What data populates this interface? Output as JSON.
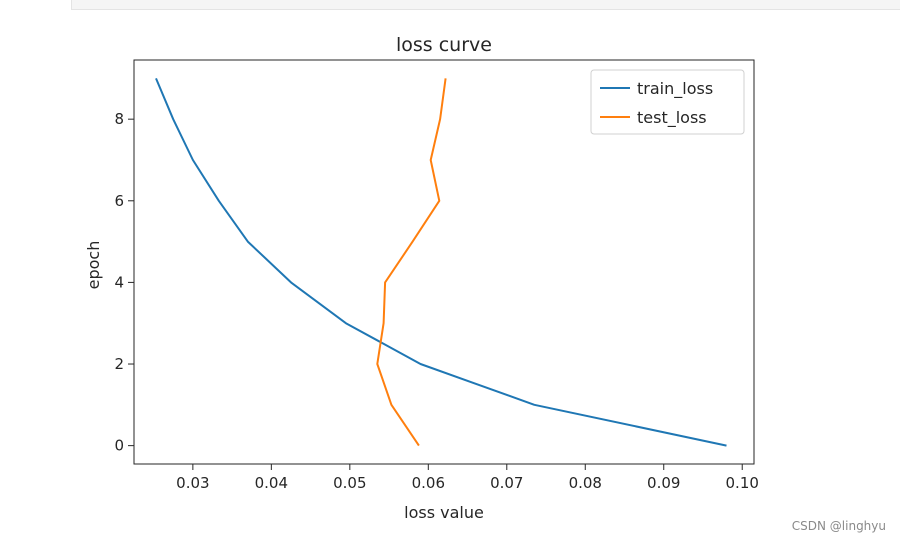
{
  "watermark": "CSDN @linghyu",
  "chart_data": {
    "type": "line",
    "title": "loss curve",
    "xlabel": "loss value",
    "ylabel": "epoch",
    "xlim": [
      0.0225,
      0.1015
    ],
    "ylim": [
      -0.45,
      9.45
    ],
    "xticks": [
      0.03,
      0.04,
      0.05,
      0.06,
      0.07,
      0.08,
      0.09,
      0.1
    ],
    "xtick_labels": [
      "0.03",
      "0.04",
      "0.05",
      "0.06",
      "0.07",
      "0.08",
      "0.09",
      "0.10"
    ],
    "yticks": [
      0,
      2,
      4,
      6,
      8
    ],
    "ytick_labels": [
      "0",
      "2",
      "4",
      "6",
      "8"
    ],
    "grid": false,
    "legend_position": "top-right",
    "series": [
      {
        "name": "train_loss",
        "color": "#1f77b4",
        "points": [
          [
            0.098,
            0
          ],
          [
            0.0735,
            1
          ],
          [
            0.059,
            2
          ],
          [
            0.0495,
            3
          ],
          [
            0.0425,
            4
          ],
          [
            0.037,
            5
          ],
          [
            0.0333,
            6
          ],
          [
            0.03,
            7
          ],
          [
            0.0275,
            8
          ],
          [
            0.0253,
            9
          ]
        ]
      },
      {
        "name": "test_loss",
        "color": "#ff7f0e",
        "points": [
          [
            0.0588,
            0
          ],
          [
            0.0553,
            1
          ],
          [
            0.0535,
            2
          ],
          [
            0.0543,
            3
          ],
          [
            0.0545,
            4
          ],
          [
            0.058,
            5
          ],
          [
            0.0614,
            6
          ],
          [
            0.0603,
            7
          ],
          [
            0.0615,
            8
          ],
          [
            0.0622,
            9
          ]
        ]
      }
    ]
  }
}
